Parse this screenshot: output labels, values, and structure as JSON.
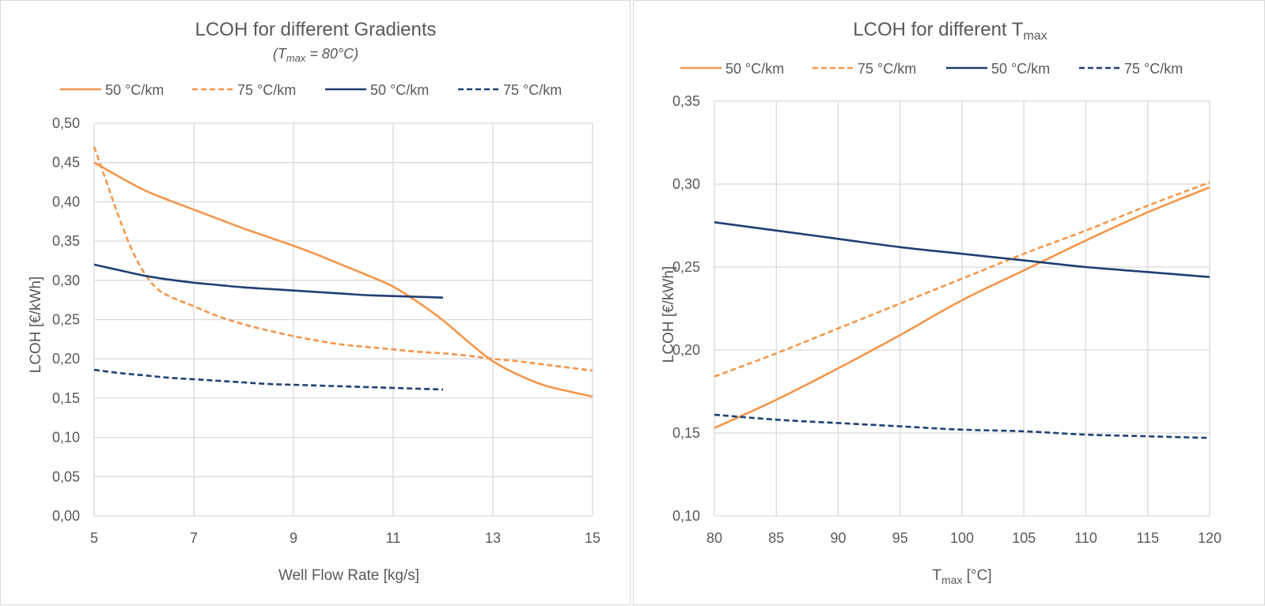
{
  "colors": {
    "orange": "#F4964A",
    "navy": "#1F3F73",
    "grid": "#d9d9d9",
    "text": "#595959"
  },
  "chart_data": [
    {
      "type": "line",
      "title": "LCOH for different Gradients",
      "subtitle": {
        "pre": "(T",
        "sub": "max",
        "post": " = 80°C)"
      },
      "xlabel": "Well Flow Rate [kg/s]",
      "ylabel": "LCOH [€/kWh]",
      "xlim": [
        5,
        15
      ],
      "ylim": [
        0,
        0.5
      ],
      "xticks": [
        5,
        7,
        9,
        11,
        13,
        15
      ],
      "xtick_labels": [
        "5",
        "7",
        "9",
        "11",
        "13",
        "15"
      ],
      "yticks": [
        0,
        0.05,
        0.1,
        0.15,
        0.2,
        0.25,
        0.3,
        0.35,
        0.4,
        0.45,
        0.5
      ],
      "ytick_labels": [
        "0,00",
        "0,05",
        "0,10",
        "0,15",
        "0,20",
        "0,25",
        "0,30",
        "0,35",
        "0,40",
        "0,45",
        "0,50"
      ],
      "grid": true,
      "legend_position": "top",
      "series": [
        {
          "name": "50 °C/km",
          "color": "orange",
          "dash": "solid",
          "x": [
            5,
            5.5,
            6,
            6.5,
            7,
            7.5,
            8,
            8.5,
            9,
            9.5,
            10,
            10.5,
            11,
            11.5,
            12,
            12.5,
            13,
            13.5,
            14,
            14.5,
            15
          ],
          "y": [
            0.45,
            0.432,
            0.415,
            0.402,
            0.39,
            0.378,
            0.366,
            0.355,
            0.344,
            0.332,
            0.319,
            0.306,
            0.292,
            0.272,
            0.249,
            0.222,
            0.197,
            0.18,
            0.167,
            0.159,
            0.152
          ]
        },
        {
          "name": "75 °C/km",
          "color": "orange",
          "dash": "dashed",
          "x": [
            5,
            5.25,
            5.5,
            5.75,
            6,
            6.25,
            6.5,
            7,
            7.5,
            8,
            8.5,
            9,
            9.5,
            10,
            10.5,
            11,
            11.5,
            12,
            12.5,
            13,
            13.5,
            14,
            14.5,
            15
          ],
          "y": [
            0.47,
            0.425,
            0.38,
            0.34,
            0.31,
            0.29,
            0.28,
            0.267,
            0.254,
            0.244,
            0.236,
            0.229,
            0.223,
            0.218,
            0.215,
            0.212,
            0.209,
            0.207,
            0.204,
            0.2,
            0.197,
            0.193,
            0.189,
            0.185
          ]
        },
        {
          "name": "50 °C/km",
          "color": "navy",
          "dash": "solid",
          "x": [
            5,
            5.5,
            6,
            6.5,
            7,
            7.5,
            8,
            8.5,
            9,
            9.5,
            10,
            10.5,
            11,
            11.5,
            12
          ],
          "y": [
            0.32,
            0.313,
            0.306,
            0.301,
            0.297,
            0.294,
            0.291,
            0.289,
            0.287,
            0.285,
            0.283,
            0.281,
            0.28,
            0.279,
            0.278
          ]
        },
        {
          "name": "75 °C/km",
          "color": "navy",
          "dash": "dashed",
          "x": [
            5,
            5.5,
            6,
            6.5,
            7,
            7.5,
            8,
            8.5,
            9,
            9.5,
            10,
            10.5,
            11,
            11.5,
            12
          ],
          "y": [
            0.186,
            0.182,
            0.179,
            0.176,
            0.174,
            0.172,
            0.17,
            0.168,
            0.167,
            0.166,
            0.165,
            0.164,
            0.163,
            0.162,
            0.161
          ]
        }
      ]
    },
    {
      "type": "line",
      "title": {
        "pre": "LCOH for different T",
        "sub": "max"
      },
      "xlabel": {
        "pre": "T",
        "sub": "max",
        "post": " [°C]"
      },
      "ylabel": "LCOH [€/kWh]",
      "xlim": [
        80,
        120
      ],
      "ylim": [
        0.1,
        0.35
      ],
      "xticks": [
        80,
        85,
        90,
        95,
        100,
        105,
        110,
        115,
        120
      ],
      "xtick_labels": [
        "80",
        "85",
        "90",
        "95",
        "100",
        "105",
        "110",
        "115",
        "120"
      ],
      "yticks": [
        0.1,
        0.15,
        0.2,
        0.25,
        0.3,
        0.35
      ],
      "ytick_labels": [
        "0,10",
        "0,15",
        "0,20",
        "0,25",
        "0,30",
        "0,35"
      ],
      "grid": true,
      "legend_position": "top",
      "series": [
        {
          "name": "50 °C/km",
          "color": "orange",
          "dash": "solid",
          "x": [
            80,
            85,
            90,
            95,
            100,
            105,
            110,
            115,
            120
          ],
          "y": [
            0.153,
            0.17,
            0.189,
            0.209,
            0.23,
            0.248,
            0.266,
            0.283,
            0.298
          ]
        },
        {
          "name": "75 °C/km",
          "color": "orange",
          "dash": "dashed",
          "x": [
            80,
            85,
            90,
            95,
            100,
            105,
            110,
            115,
            120
          ],
          "y": [
            0.184,
            0.198,
            0.213,
            0.228,
            0.243,
            0.258,
            0.272,
            0.287,
            0.301
          ]
        },
        {
          "name": "50 °C/km",
          "color": "navy",
          "dash": "solid",
          "x": [
            80,
            85,
            90,
            95,
            100,
            105,
            110,
            115,
            120
          ],
          "y": [
            0.277,
            0.272,
            0.267,
            0.262,
            0.258,
            0.254,
            0.25,
            0.247,
            0.244
          ]
        },
        {
          "name": "75 °C/km",
          "color": "navy",
          "dash": "dashed",
          "x": [
            80,
            85,
            90,
            95,
            100,
            105,
            110,
            115,
            120
          ],
          "y": [
            0.161,
            0.158,
            0.156,
            0.154,
            0.152,
            0.151,
            0.149,
            0.148,
            0.147
          ]
        }
      ]
    }
  ]
}
